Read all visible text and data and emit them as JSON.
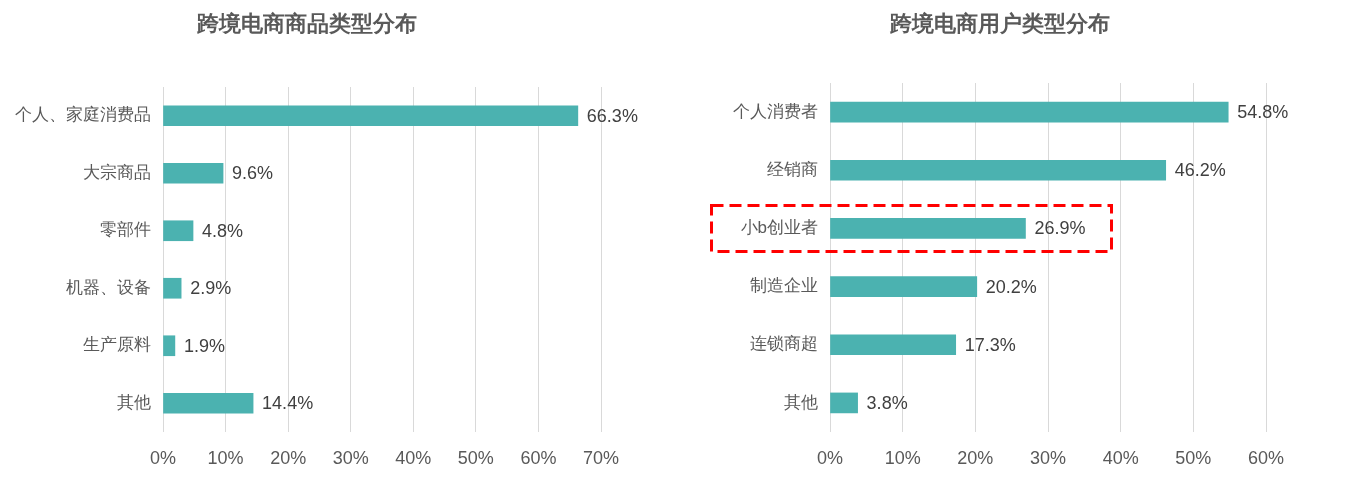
{
  "chart_data": [
    {
      "type": "bar",
      "orientation": "horizontal",
      "title": "跨境电商商品类型分布",
      "categories": [
        "个人、家庭消费品",
        "大宗商品",
        "零部件",
        "机器、设备",
        "生产原料",
        "其他"
      ],
      "values": [
        66.3,
        9.6,
        4.8,
        2.9,
        1.9,
        14.4
      ],
      "value_labels": [
        "66.3%",
        "9.6%",
        "4.8%",
        "2.9%",
        "1.9%",
        "14.4%"
      ],
      "color": "#4bb2b0",
      "xlim": [
        0,
        70
      ],
      "xticks": [
        {
          "value": 0,
          "label": "0%"
        },
        {
          "value": 10,
          "label": "10%"
        },
        {
          "value": 20,
          "label": "20%"
        },
        {
          "value": 30,
          "label": "30%"
        },
        {
          "value": 40,
          "label": "40%"
        },
        {
          "value": 50,
          "label": "50%"
        },
        {
          "value": 60,
          "label": "60%"
        },
        {
          "value": 70,
          "label": "70%"
        }
      ],
      "grid": "x"
    },
    {
      "type": "bar",
      "orientation": "horizontal",
      "title": "跨境电商用户类型分布",
      "categories": [
        "个人消费者",
        "经销商",
        "小b创业者",
        "制造企业",
        "连锁商超",
        "其他"
      ],
      "values": [
        54.8,
        46.2,
        26.9,
        20.2,
        17.3,
        3.8
      ],
      "value_labels": [
        "54.8%",
        "46.2%",
        "26.9%",
        "20.2%",
        "17.3%",
        "3.8%"
      ],
      "color": "#4bb2b0",
      "xlim": [
        0,
        60
      ],
      "xticks": [
        {
          "value": 0,
          "label": "0%"
        },
        {
          "value": 10,
          "label": "10%"
        },
        {
          "value": 20,
          "label": "20%"
        },
        {
          "value": 30,
          "label": "30%"
        },
        {
          "value": 40,
          "label": "40%"
        },
        {
          "value": 50,
          "label": "50%"
        },
        {
          "value": 60,
          "label": "60%"
        }
      ],
      "grid": "x"
    }
  ]
}
